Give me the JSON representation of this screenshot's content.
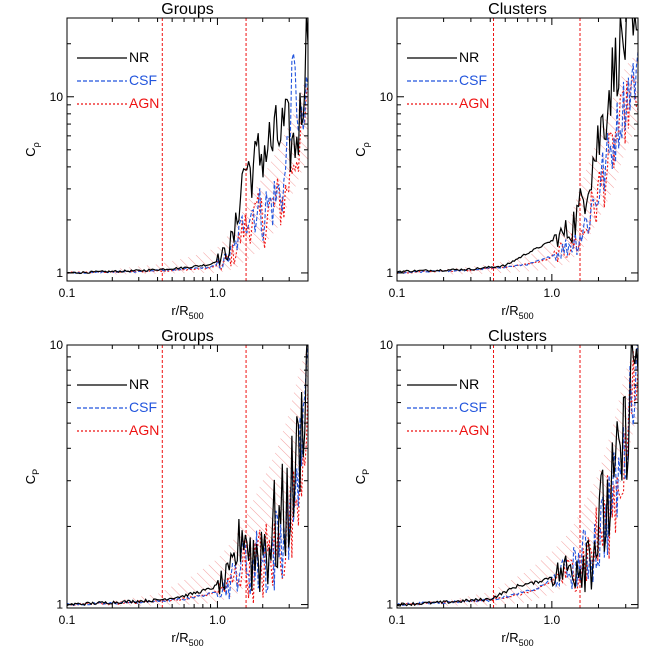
{
  "figure": {
    "panels": [
      {
        "title": "Groups",
        "xlabel": "r/R",
        "xlabel_sub": "500",
        "ylabel": "C",
        "ylabel_sub": "ρ"
      },
      {
        "title": "Clusters",
        "xlabel": "r/R",
        "xlabel_sub": "500",
        "ylabel": "C",
        "ylabel_sub": "ρ"
      },
      {
        "title": "Groups",
        "xlabel": "r/R",
        "xlabel_sub": "500",
        "ylabel": "C",
        "ylabel_sub": "P"
      },
      {
        "title": "Clusters",
        "xlabel": "r/R",
        "xlabel_sub": "500",
        "ylabel": "C",
        "ylabel_sub": "P"
      }
    ],
    "legend": [
      {
        "label": "NR",
        "color": "#000000",
        "dash": "none"
      },
      {
        "label": "CSF",
        "color": "#2255dd",
        "dash": "4,2"
      },
      {
        "label": "AGN",
        "color": "#ee1111",
        "dash": "2,2"
      }
    ],
    "colors": {
      "nr": "#000000",
      "csf": "#2255dd",
      "agn": "#ee1111",
      "hatch": "#f4a0a0"
    }
  },
  "chart_data": [
    {
      "type": "line",
      "title": "Groups",
      "xlabel": "r/R500",
      "ylabel": "Cρ",
      "xscale": "log",
      "yscale": "log",
      "xlim": [
        0.1,
        4.0
      ],
      "ylim": [
        0.9,
        28
      ],
      "xticks": [
        0.1,
        1.0
      ],
      "xtick_labels": [
        "0.1",
        "1.0"
      ],
      "yticks": [
        1,
        10
      ],
      "ytick_labels": [
        "1",
        "10"
      ],
      "vlines": [
        0.43,
        1.55
      ],
      "series": [
        {
          "name": "NR",
          "x": [
            0.1,
            0.3,
            0.6,
            0.9,
            1.1,
            1.3,
            1.5,
            1.7,
            2.0,
            2.4,
            2.8,
            3.2,
            3.6,
            4.0
          ],
          "y": [
            1.0,
            1.03,
            1.07,
            1.12,
            1.25,
            1.6,
            4.0,
            3.8,
            5.0,
            5.5,
            6.5,
            5.0,
            8.0,
            28
          ]
        },
        {
          "name": "CSF",
          "x": [
            0.1,
            0.3,
            0.6,
            0.9,
            1.1,
            1.3,
            1.5,
            1.7,
            2.0,
            2.4,
            2.8,
            3.2,
            3.6,
            4.0
          ],
          "y": [
            1.0,
            1.02,
            1.05,
            1.08,
            1.15,
            1.35,
            2.0,
            2.3,
            2.2,
            2.6,
            3.2,
            14,
            6.0,
            10
          ]
        },
        {
          "name": "AGN",
          "x": [
            0.1,
            0.3,
            0.6,
            0.9,
            1.1,
            1.3,
            1.5,
            1.7,
            2.0,
            2.4,
            2.8,
            3.2,
            3.6,
            4.0
          ],
          "y": [
            1.0,
            1.02,
            1.04,
            1.07,
            1.12,
            1.3,
            1.8,
            2.0,
            2.0,
            2.4,
            2.6,
            4.5,
            5.5,
            9.0
          ]
        }
      ],
      "band": {
        "x": [
          0.2,
          0.4,
          0.7,
          1.0,
          1.3,
          1.6,
          2.0,
          2.5,
          3.0,
          3.5,
          4.0
        ],
        "low": [
          0.98,
          0.99,
          1.0,
          1.0,
          1.05,
          1.2,
          1.4,
          1.8,
          2.5,
          3.5,
          4.5
        ],
        "high": [
          1.05,
          1.12,
          1.25,
          1.4,
          1.8,
          2.6,
          3.5,
          5.0,
          7.0,
          10,
          14
        ]
      },
      "legend": [
        "NR",
        "CSF",
        "AGN"
      ],
      "legend_position": "top-left"
    },
    {
      "type": "line",
      "title": "Clusters",
      "xlabel": "r/R500",
      "ylabel": "Cρ",
      "xscale": "log",
      "yscale": "log",
      "xlim": [
        0.1,
        3.6
      ],
      "ylim": [
        0.9,
        28
      ],
      "xticks": [
        0.1,
        1.0
      ],
      "xtick_labels": [
        "0.1",
        "1.0"
      ],
      "yticks": [
        1,
        10
      ],
      "ytick_labels": [
        "1",
        "10"
      ],
      "vlines": [
        0.42,
        1.52
      ],
      "series": [
        {
          "name": "NR",
          "x": [
            0.1,
            0.3,
            0.5,
            0.7,
            0.9,
            1.1,
            1.3,
            1.5,
            1.7,
            2.0,
            2.4,
            2.8,
            3.2,
            3.6
          ],
          "y": [
            1.02,
            1.05,
            1.1,
            1.3,
            1.45,
            1.6,
            1.75,
            2.2,
            3.5,
            5.5,
            12,
            20,
            22,
            18
          ]
        },
        {
          "name": "CSF",
          "x": [
            0.1,
            0.3,
            0.5,
            0.7,
            0.9,
            1.1,
            1.3,
            1.5,
            1.7,
            2.0,
            2.4,
            2.8,
            3.2,
            3.6
          ],
          "y": [
            1.0,
            1.04,
            1.08,
            1.12,
            1.2,
            1.3,
            1.45,
            1.6,
            2.0,
            3.0,
            5.0,
            8.0,
            12,
            13
          ]
        },
        {
          "name": "AGN",
          "x": [
            0.1,
            0.3,
            0.5,
            0.7,
            0.9,
            1.1,
            1.3,
            1.5,
            1.7,
            2.0,
            2.4,
            2.8,
            3.2,
            3.6
          ],
          "y": [
            1.0,
            1.04,
            1.08,
            1.12,
            1.18,
            1.28,
            1.4,
            1.55,
            1.9,
            2.8,
            4.5,
            7.0,
            9.5,
            10
          ]
        }
      ],
      "band": {
        "x": [
          0.2,
          0.4,
          0.7,
          1.0,
          1.3,
          1.6,
          2.0,
          2.5,
          3.0,
          3.6
        ],
        "low": [
          0.98,
          0.99,
          1.02,
          1.05,
          1.15,
          1.4,
          2.0,
          3.0,
          5.0,
          7.0
        ],
        "high": [
          1.05,
          1.12,
          1.25,
          1.5,
          2.0,
          3.5,
          6.0,
          10,
          15,
          18
        ]
      },
      "legend": [
        "NR",
        "CSF",
        "AGN"
      ],
      "legend_position": "top-left"
    },
    {
      "type": "line",
      "title": "Groups",
      "xlabel": "r/R500",
      "ylabel": "CP",
      "xscale": "log",
      "yscale": "log",
      "xlim": [
        0.1,
        4.0
      ],
      "ylim": [
        0.97,
        10
      ],
      "xticks": [
        0.1,
        1.0
      ],
      "xtick_labels": [
        "0.1",
        "1.0"
      ],
      "yticks": [
        1,
        10
      ],
      "ytick_labels": [
        "1",
        "10"
      ],
      "vlines": [
        0.43,
        1.55
      ],
      "series": [
        {
          "name": "NR",
          "x": [
            0.1,
            0.2,
            0.4,
            0.6,
            0.9,
            1.2,
            1.5,
            1.7,
            2.0,
            2.4,
            2.8,
            3.2,
            3.6,
            4.0
          ],
          "y": [
            1.0,
            1.02,
            1.04,
            1.08,
            1.15,
            1.25,
            2.0,
            1.5,
            1.7,
            1.9,
            2.2,
            3.0,
            4.5,
            10
          ]
        },
        {
          "name": "CSF",
          "x": [
            0.1,
            0.2,
            0.4,
            0.6,
            0.9,
            1.2,
            1.5,
            1.7,
            2.0,
            2.4,
            2.8,
            3.2,
            3.6,
            4.0
          ],
          "y": [
            1.0,
            1.01,
            1.03,
            1.05,
            1.1,
            1.2,
            1.5,
            1.4,
            1.5,
            1.6,
            2.0,
            2.5,
            4.0,
            7.5
          ]
        },
        {
          "name": "AGN",
          "x": [
            0.1,
            0.2,
            0.4,
            0.6,
            0.9,
            1.2,
            1.5,
            1.7,
            2.0,
            2.4,
            2.8,
            3.2,
            3.6,
            4.0
          ],
          "y": [
            1.0,
            1.01,
            1.03,
            1.05,
            1.1,
            1.18,
            1.45,
            1.35,
            1.45,
            1.55,
            1.8,
            2.3,
            3.5,
            6.5
          ]
        }
      ],
      "band": {
        "x": [
          0.2,
          0.4,
          0.7,
          1.0,
          1.3,
          1.6,
          2.0,
          2.5,
          3.0,
          3.5,
          4.0
        ],
        "low": [
          0.99,
          0.99,
          1.0,
          1.02,
          1.08,
          1.2,
          1.35,
          1.6,
          2.0,
          3.0,
          4.0
        ],
        "high": [
          1.03,
          1.1,
          1.3,
          1.5,
          1.8,
          2.3,
          3.0,
          4.0,
          5.5,
          8.0,
          10
        ]
      },
      "legend": [
        "NR",
        "CSF",
        "AGN"
      ],
      "legend_position": "top-left"
    },
    {
      "type": "line",
      "title": "Clusters",
      "xlabel": "r/R500",
      "ylabel": "CP",
      "xscale": "log",
      "yscale": "log",
      "xlim": [
        0.1,
        3.6
      ],
      "ylim": [
        0.97,
        10
      ],
      "xticks": [
        0.1,
        1.0
      ],
      "xtick_labels": [
        "0.1",
        "1.0"
      ],
      "yticks": [
        1,
        10
      ],
      "ytick_labels": [
        "1",
        "10"
      ],
      "vlines": [
        0.42,
        1.52
      ],
      "series": [
        {
          "name": "NR",
          "x": [
            0.1,
            0.2,
            0.4,
            0.6,
            0.8,
            1.0,
            1.3,
            1.6,
            1.9,
            2.2,
            2.6,
            3.0,
            3.3,
            3.6
          ],
          "y": [
            1.0,
            1.02,
            1.05,
            1.18,
            1.22,
            1.28,
            1.38,
            1.55,
            1.8,
            2.2,
            3.0,
            4.5,
            8.0,
            10
          ]
        },
        {
          "name": "CSF",
          "x": [
            0.1,
            0.2,
            0.4,
            0.6,
            0.8,
            1.0,
            1.3,
            1.6,
            1.9,
            2.2,
            2.6,
            3.0,
            3.3,
            3.6
          ],
          "y": [
            1.0,
            1.02,
            1.04,
            1.1,
            1.15,
            1.25,
            1.35,
            1.5,
            1.7,
            2.1,
            2.8,
            4.0,
            7.0,
            9.0
          ]
        },
        {
          "name": "AGN",
          "x": [
            0.1,
            0.2,
            0.4,
            0.6,
            0.8,
            1.0,
            1.3,
            1.6,
            1.9,
            2.2,
            2.6,
            3.0,
            3.3,
            3.6
          ],
          "y": [
            1.0,
            1.02,
            1.04,
            1.09,
            1.14,
            1.23,
            1.33,
            1.48,
            1.68,
            2.0,
            2.7,
            3.8,
            6.5,
            7.0
          ]
        }
      ],
      "band": {
        "x": [
          0.2,
          0.4,
          0.7,
          1.0,
          1.3,
          1.6,
          2.0,
          2.5,
          3.0,
          3.6
        ],
        "low": [
          0.99,
          0.99,
          1.02,
          1.1,
          1.2,
          1.35,
          1.6,
          2.3,
          3.5,
          5.5
        ],
        "high": [
          1.03,
          1.12,
          1.35,
          1.6,
          1.9,
          2.4,
          3.2,
          5.0,
          8.0,
          10
        ]
      },
      "legend": [
        "NR",
        "CSF",
        "AGN"
      ],
      "legend_position": "top-left"
    }
  ]
}
